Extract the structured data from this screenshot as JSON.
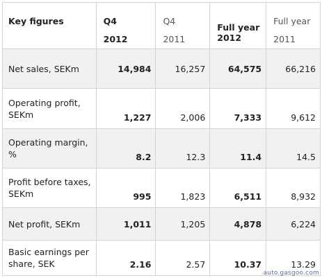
{
  "header": {
    "label": "Key figures",
    "columns": [
      {
        "line1": "Q4",
        "line2": "2012"
      },
      {
        "line1": "Q4",
        "line2": "2011"
      },
      {
        "line1": "Full year",
        "line2": "2012"
      },
      {
        "line1": "Full year",
        "line2": "2011"
      }
    ]
  },
  "rows": [
    {
      "label": "Net sales, SEKm",
      "values": [
        "14,984",
        "16,257",
        "64,575",
        "66,216"
      ]
    },
    {
      "label": "Operating profit, SEKm",
      "values": [
        "1,227",
        "2,006",
        "7,333",
        "9,612"
      ]
    },
    {
      "label": "Operating margin, %",
      "values": [
        "8.2",
        "12.3",
        "11.4",
        "14.5"
      ]
    },
    {
      "label": "Profit before taxes, SEKm",
      "values": [
        "995",
        "1,823",
        "6,511",
        "8,932"
      ]
    },
    {
      "label": "Net profit, SEKm",
      "values": [
        "1,011",
        "1,205",
        "4,878",
        "6,224"
      ]
    },
    {
      "label": "Basic earnings per share, SEK",
      "values": [
        "2.16",
        "2.57",
        "10.37",
        "13.29"
      ]
    }
  ],
  "watermark": "auto.gasgoo.com"
}
